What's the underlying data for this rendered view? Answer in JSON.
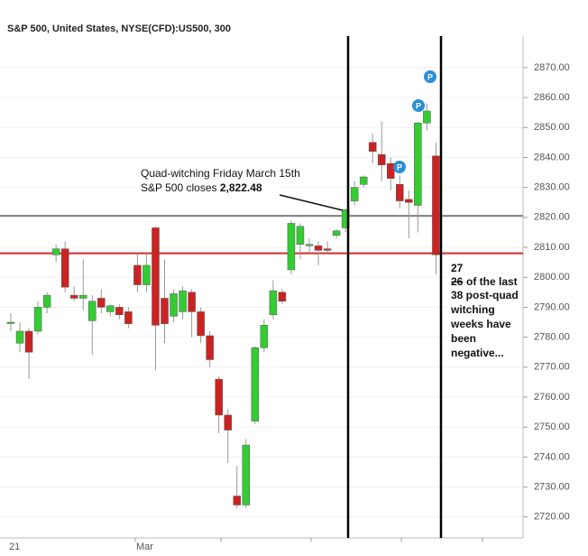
{
  "chart_data": {
    "type": "candlestick",
    "title": "S&P 500, United States, NYSE(CFD):US500, 300",
    "categories": [
      "21",
      null,
      null,
      null,
      null,
      null,
      null,
      null,
      null,
      null,
      null,
      null,
      null,
      null,
      null,
      "Mar",
      null,
      null,
      null,
      null,
      null,
      null,
      null,
      null,
      null,
      null,
      null,
      null,
      null,
      null,
      null,
      null,
      null,
      null,
      null,
      null,
      null,
      null,
      null,
      null,
      null,
      null,
      null,
      null,
      null,
      null,
      null,
      null
    ],
    "open": [
      2785,
      2778,
      2782,
      2782,
      2790,
      2807.5,
      2809.5,
      2794,
      2793,
      2785.5,
      2793,
      2788.5,
      2790,
      2788.5,
      2804,
      2797.5,
      2816.5,
      2793,
      2787,
      2788.5,
      2795,
      2788.5,
      2780.5,
      2766,
      2754,
      2727,
      2724,
      2752,
      2776.5,
      2787.5,
      2795,
      2802.5,
      2811,
      2810.5,
      2810.5,
      2809.5,
      2814,
      2816.5,
      2825.5,
      2831,
      2845,
      2841,
      2838,
      2831,
      2826,
      2824,
      2851.5,
      2840.5
    ],
    "high": [
      2788,
      2785,
      2783,
      2792,
      2795,
      2811,
      2812,
      2797,
      2806,
      2794,
      2796,
      2791,
      2791,
      2790,
      2808,
      2808,
      2817,
      2806,
      2796,
      2797,
      2796,
      2790,
      2782,
      2767,
      2756,
      2737,
      2746,
      2777,
      2786,
      2799,
      2796,
      2819,
      2818,
      2813,
      2812,
      2812,
      2816,
      2823,
      2832,
      2834,
      2848,
      2852,
      2840,
      2834,
      2829,
      2852,
      2858,
      2845
    ],
    "low": [
      2782,
      2775,
      2766,
      2781,
      2788,
      2805,
      2795,
      2792,
      2789,
      2774,
      2788,
      2787,
      2786,
      2783,
      2795,
      2795,
      2769,
      2778,
      2785,
      2786,
      2780,
      2778,
      2770,
      2748,
      2738,
      2723,
      2723,
      2751,
      2775,
      2786,
      2791,
      2801,
      2806,
      2808,
      2804,
      2808,
      2813,
      2815,
      2824,
      2830,
      2838,
      2832,
      2829,
      2823,
      2813,
      2815,
      2849,
      2801
    ],
    "close": [
      2785,
      2782,
      2775,
      2790,
      2794,
      2809.5,
      2796.7,
      2793,
      2794,
      2792,
      2790,
      2790.5,
      2787.5,
      2784.5,
      2797.5,
      2804,
      2784,
      2784.5,
      2794.5,
      2795.5,
      2788.5,
      2780.5,
      2772.5,
      2754,
      2749,
      2724,
      2744,
      2776.5,
      2784,
      2795.5,
      2792,
      2818,
      2817,
      2811,
      2809,
      2809,
      2815.5,
      2822.48,
      2830,
      2833.5,
      2842,
      2837.5,
      2833,
      2825.5,
      2825,
      2851.5,
      2855.5,
      2807.5
    ],
    "up_color": "#33cc33",
    "down_color": "#cc2222",
    "hlines": [
      {
        "value": 2820.5,
        "color": "#808080"
      },
      {
        "value": 2808,
        "color": "#d42a2a"
      }
    ],
    "ylim": [
      2713,
      2880.5
    ],
    "yticks": [
      {
        "value": 2720,
        "label": "2720.00"
      },
      {
        "value": 2730,
        "label": "2730.00"
      },
      {
        "value": 2740,
        "label": "2740.00"
      },
      {
        "value": 2750,
        "label": "2750.00"
      },
      {
        "value": 2760,
        "label": "2760.00"
      },
      {
        "value": 2770,
        "label": "2770.00"
      },
      {
        "value": 2780,
        "label": "2780.00"
      },
      {
        "value": 2790,
        "label": "2790.00"
      },
      {
        "value": 2800,
        "label": "2800.00"
      },
      {
        "value": 2810,
        "label": "2810.00"
      },
      {
        "value": 2820,
        "label": "2820.00"
      },
      {
        "value": 2830,
        "label": "2830.00"
      },
      {
        "value": 2840,
        "label": "2840.00"
      },
      {
        "value": 2850,
        "label": "2850.00"
      },
      {
        "value": 2860,
        "label": "2860.00"
      },
      {
        "value": 2870,
        "label": "2870.00"
      }
    ],
    "grid": true,
    "annotations": {
      "left": [
        "Quad-witching Friday March 15th",
        "S&P 500 closes",
        "2,822.48"
      ],
      "right": [
        "27",
        "26",
        "of the last",
        "38 post-quad",
        "witching",
        "weeks have",
        "been",
        "negative..."
      ]
    }
  }
}
